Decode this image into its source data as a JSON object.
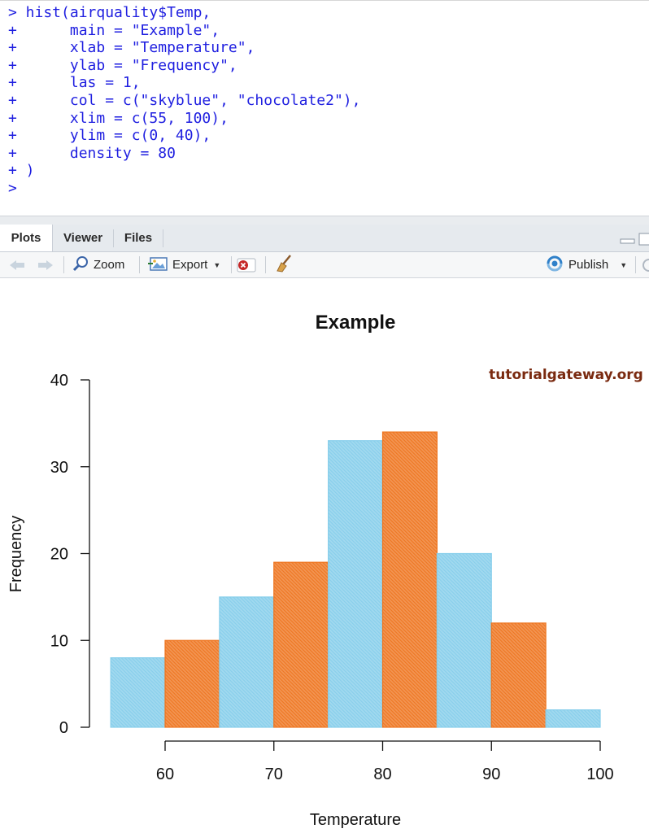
{
  "console": {
    "lines": [
      "> hist(airquality$Temp,",
      "+      main = \"Example\",",
      "+      xlab = \"Temperature\",",
      "+      ylab = \"Frequency\",",
      "+      las = 1,",
      "+      col = c(\"skyblue\", \"chocolate2\"),",
      "+      xlim = c(55, 100),",
      "+      ylim = c(0, 40),",
      "+      density = 80",
      "+ )",
      ">"
    ]
  },
  "tabs": [
    {
      "label": "Plots",
      "active": true
    },
    {
      "label": "Viewer",
      "active": false
    },
    {
      "label": "Files",
      "active": false
    }
  ],
  "toolbar": {
    "zoom_label": "Zoom",
    "export_label": "Export",
    "publish_label": "Publish"
  },
  "watermark": "tutorialgateway.org",
  "colors": {
    "console_text": "#1f1fe0",
    "bar_a": "#87ceeb",
    "bar_b": "#ee7621",
    "watermark": "#7a2a10"
  },
  "chart_data": {
    "type": "bar",
    "title": "Example",
    "xlabel": "Temperature",
    "ylabel": "Frequency",
    "bin_edges": [
      55,
      60,
      65,
      70,
      75,
      80,
      85,
      90,
      95,
      100
    ],
    "values": [
      8,
      10,
      15,
      19,
      33,
      34,
      20,
      12,
      2
    ],
    "colors": [
      "skyblue",
      "chocolate2"
    ],
    "xlim": [
      55,
      100
    ],
    "ylim": [
      0,
      40
    ],
    "xticks": [
      60,
      70,
      80,
      90,
      100
    ],
    "yticks": [
      0,
      10,
      20,
      30,
      40
    ],
    "grid": false,
    "hatched": true
  }
}
